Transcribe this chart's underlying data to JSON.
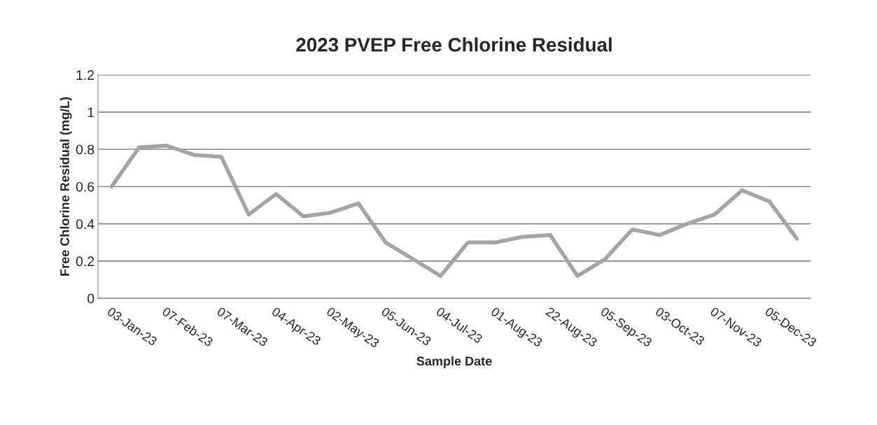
{
  "chart_data": {
    "type": "line",
    "title": "2023 PVEP Free Chlorine Residual",
    "xlabel": "Sample Date",
    "ylabel": "Free Chlorine Residual (mg/L)",
    "categories": [
      "03-Jan-23",
      null,
      "07-Feb-23",
      null,
      "07-Mar-23",
      null,
      "04-Apr-23",
      null,
      "02-May-23",
      null,
      "05-Jun-23",
      null,
      "04-Jul-23",
      null,
      "01-Aug-23",
      null,
      "22-Aug-23",
      null,
      "05-Sep-23",
      null,
      "03-Oct-23",
      null,
      "07-Nov-23",
      null,
      "05-Dec-23",
      null
    ],
    "series": [
      {
        "color": "#a5a5a5",
        "values": [
          0.6,
          0.81,
          0.82,
          0.77,
          0.76,
          0.45,
          0.56,
          0.44,
          0.46,
          0.51,
          0.3,
          0.21,
          0.12,
          0.3,
          0.3,
          0.33,
          0.34,
          0.12,
          0.21,
          0.37,
          0.34,
          0.4,
          0.45,
          0.58,
          0.52,
          0.32
        ]
      }
    ],
    "ylim": [
      0,
      1.2
    ],
    "yticks": [
      0,
      0.2,
      0.4,
      0.6,
      0.8,
      1,
      1.2
    ],
    "grid": "y",
    "line_style": "solid"
  }
}
